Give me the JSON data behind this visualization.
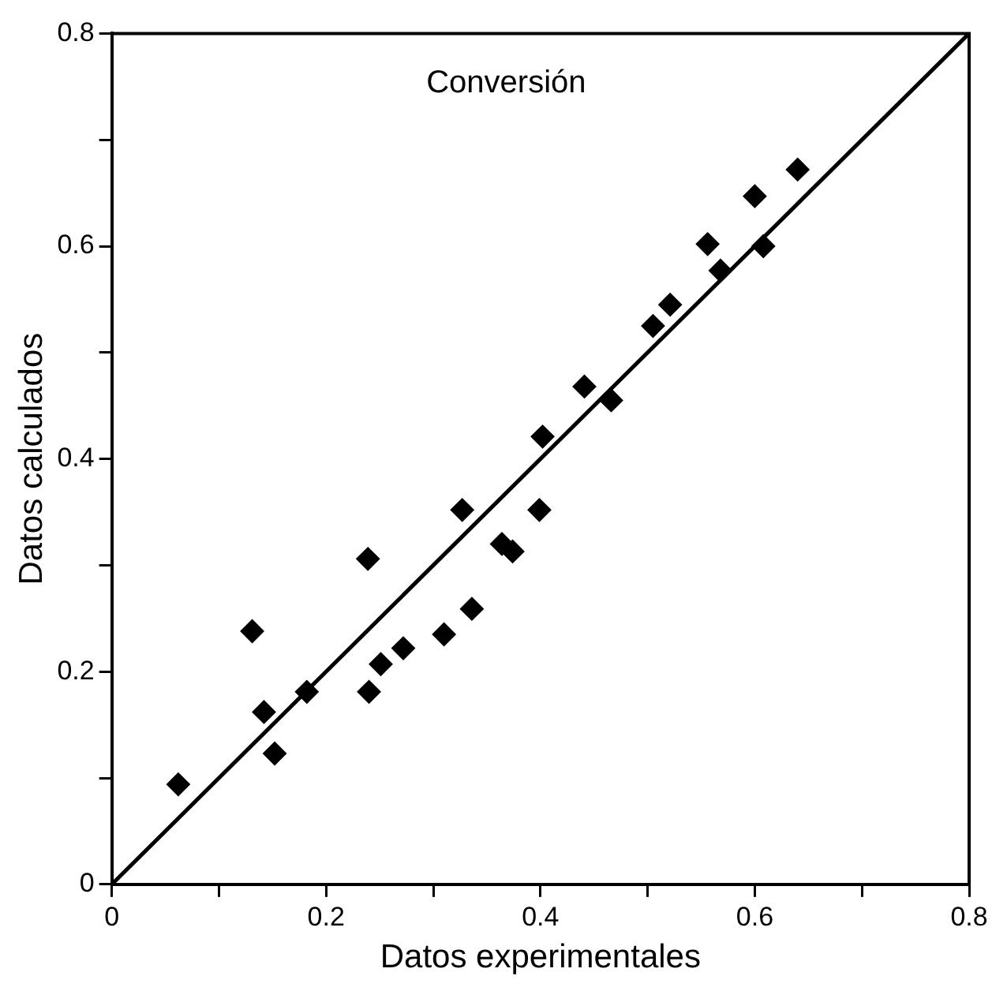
{
  "chart_data": {
    "type": "scatter",
    "title": "Conversión",
    "xlabel": "Datos experimentales",
    "ylabel": "Datos calculados",
    "xlim": [
      0,
      0.8
    ],
    "ylim": [
      0,
      0.8
    ],
    "xticks": [
      0,
      {
        "value": 0.1,
        "label": null
      },
      0.2,
      {
        "value": 0.3,
        "label": null
      },
      0.4,
      {
        "value": 0.5,
        "label": null
      },
      0.6,
      {
        "value": 0.7,
        "label": null
      },
      0.8
    ],
    "yticks": [
      0,
      {
        "value": 0.1,
        "label": null
      },
      0.2,
      {
        "value": 0.3,
        "label": null
      },
      0.4,
      {
        "value": 0.5,
        "label": null
      },
      0.6,
      {
        "value": 0.7,
        "label": null
      },
      0.8
    ],
    "grid": false,
    "legend": false,
    "marker": "diamond",
    "series": [
      {
        "type": "scatter",
        "color": "#000000",
        "x": [
          0.062,
          0.131,
          0.142,
          0.152,
          0.182,
          0.239,
          0.24,
          0.251,
          0.272,
          0.31,
          0.336,
          0.327,
          0.364,
          0.374,
          0.399,
          0.402,
          0.441,
          0.466,
          0.505,
          0.521,
          0.556,
          0.568,
          0.608,
          0.6,
          0.64
        ],
        "values": [
          0.094,
          0.238,
          0.162,
          0.123,
          0.181,
          0.306,
          0.181,
          0.207,
          0.222,
          0.235,
          0.259,
          0.352,
          0.32,
          0.313,
          0.352,
          0.421,
          0.468,
          0.455,
          0.525,
          0.545,
          0.602,
          0.577,
          0.6,
          0.647,
          0.672
        ]
      },
      {
        "type": "line",
        "color": "#000000",
        "marker": "none",
        "x": [
          0,
          0.8
        ],
        "values": [
          0,
          0.8
        ]
      }
    ]
  }
}
